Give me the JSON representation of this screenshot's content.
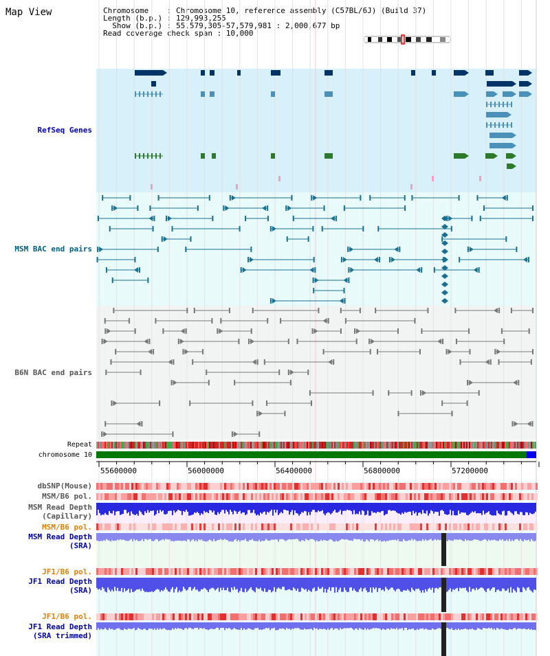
{
  "map_title": "Map View",
  "header": {
    "chromosome": "Chromosome    : Chromosome 10, reference assembly (C57BL/6J) (Build 37)",
    "length": "Length (b.p.) : 129,993,255",
    "show": "  Show (b.p.) : 55,579,305-57,579,981 : 2,000,677 bp",
    "coverage": "Read coverage check span : 10,000"
  },
  "tracks": {
    "refseq": "RefSeq Genes",
    "msm_bac": "MSM BAC end pairs",
    "b6n_bac": "B6N BAC end pairs",
    "repeat": "Repeat",
    "chromosome": "chromosome 10",
    "dbsnp": "dbSNP(Mouse)",
    "msm_b6_pol": "MSM/B6 pol.",
    "msm_depth_cap_1": "MSM Read Depth",
    "msm_depth_cap_2": "(Capillary)",
    "msm_b6_pol2": "MSM/B6 pol.",
    "msm_depth_sra_1": "MSM Read Depth",
    "msm_depth_sra_2": "(SRA)",
    "jf1_b6_pol": "JF1/B6 pol.",
    "jf1_depth_sra_1": "JF1 Read Depth",
    "jf1_depth_sra_2": "(SRA)",
    "jf1_b6_pol2": "JF1/B6 pol.",
    "jf1_depth_trim_1": "JF1 Read Depth",
    "jf1_depth_trim_2": "(SRA trimmed)"
  },
  "axis_ticks": [
    "55600000",
    "56000000",
    "56400000",
    "56800000",
    "57200000"
  ],
  "colors": {
    "refseq_bg": "#d8f0fa",
    "msm_bg": "#e8fafa",
    "b6n_bg": "#f2f4f4",
    "label_blue": "#0000aa",
    "label_teal": "#006080",
    "label_orange": "#e08000",
    "chrom_green": "#007700"
  }
}
